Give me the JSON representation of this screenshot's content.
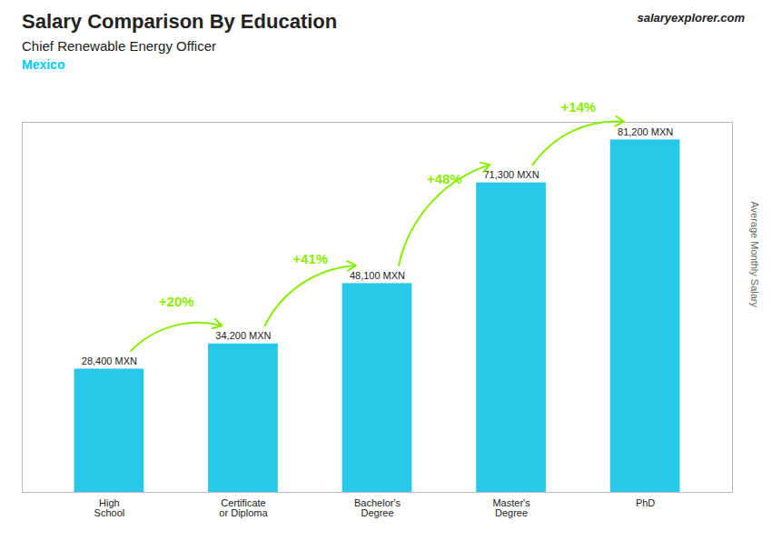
{
  "chart_data": {
    "type": "bar",
    "title": "Salary Comparison By Education",
    "subtitle": "Chief Renewable Energy Officer",
    "ylabel": "Average Monthly Salary",
    "categories": [
      "High\nSchool",
      "Certificate\nor Diploma",
      "Bachelor's\nDegree",
      "Master's\nDegree",
      "PhD"
    ],
    "values": [
      28400,
      34200,
      48100,
      71300,
      81200
    ],
    "value_labels": [
      "28,400 MXN",
      "34,200 MXN",
      "48,100 MXN",
      "71,300 MXN",
      "81,200 MXN"
    ],
    "data_labels": true,
    "color": "#29c8e8",
    "ylim": [
      0,
      85260
    ],
    "tick_labels": "x",
    "grid": false,
    "annotations": [
      {
        "text": "Mexico",
        "color": "#00ccff"
      },
      {
        "text": "salaryexplorer.com"
      },
      {
        "text": "+20%",
        "from": "High\nSchool",
        "to": "Certificate\nor Diploma",
        "color": "#88ee00"
      },
      {
        "text": "+41%",
        "from": "Certificate\nor Diploma",
        "to": "Bachelor's\nDegree",
        "color": "#88ee00"
      },
      {
        "text": "+48%",
        "from": "Bachelor's\nDegree",
        "to": "Master's\nDegree",
        "color": "#88ee00"
      },
      {
        "text": "+14%",
        "from": "Master's\nDegree",
        "to": "PhD",
        "color": "#88ee00"
      }
    ]
  }
}
